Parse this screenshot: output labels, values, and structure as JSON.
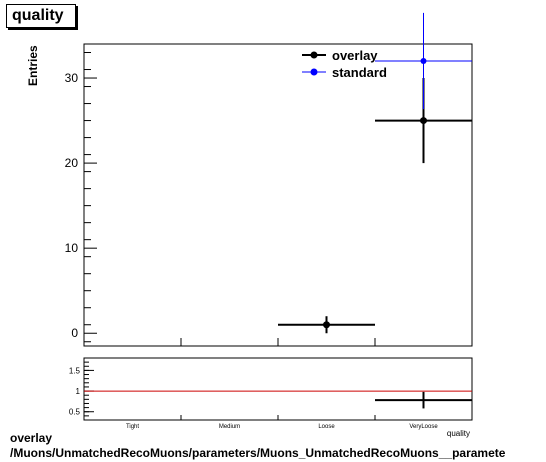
{
  "title": "quality",
  "footer": {
    "line1": "overlay",
    "line2": "/Muons/UnmatchedRecoMuons/parameters/Muons_UnmatchedRecoMuons__paramete"
  },
  "chart_data": [
    {
      "type": "scatter",
      "ylabel": "Entries",
      "ylim": [
        -1.5,
        34
      ],
      "yticks": [
        0,
        10,
        20,
        30
      ],
      "categories": [
        "Tight",
        "Medium",
        "Loose",
        "VeryLoose"
      ],
      "xlabel": "quality",
      "legend": {
        "position": "top-right",
        "entries": [
          "overlay",
          "standard"
        ]
      },
      "series": [
        {
          "name": "overlay",
          "color": "#000000",
          "points": [
            {
              "category": "Loose",
              "value": 1,
              "err": 1
            },
            {
              "category": "VeryLoose",
              "value": 25,
              "err": 5
            }
          ]
        },
        {
          "name": "standard",
          "color": "#0000ff",
          "points": [
            {
              "category": "VeryLoose",
              "value": 32,
              "err": 5.66
            }
          ]
        }
      ]
    },
    {
      "type": "scatter",
      "ylim": [
        0.3,
        1.8
      ],
      "yticks": [
        0.5,
        1,
        1.5
      ],
      "ytick_labels": [
        "0.5",
        "1",
        "1.5"
      ],
      "reference_line": {
        "value": 1,
        "color": "#cc0000"
      },
      "series": [
        {
          "name": "ratio",
          "color": "#000000",
          "points": [
            {
              "category": "VeryLoose",
              "value": 0.78,
              "err": 0.2
            }
          ]
        }
      ]
    }
  ]
}
